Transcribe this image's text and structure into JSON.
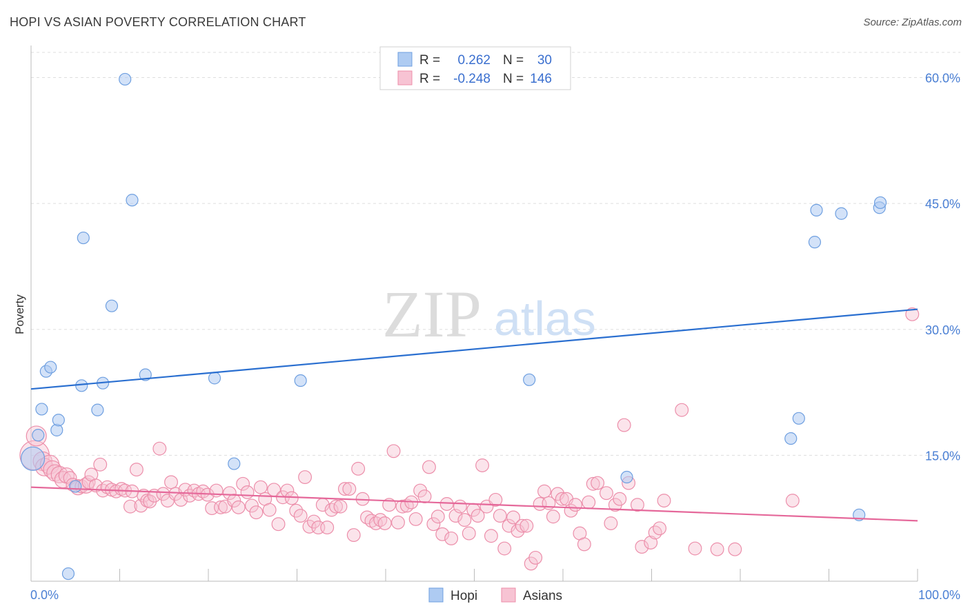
{
  "title": "HOPI VS ASIAN POVERTY CORRELATION CHART",
  "source": "Source: ZipAtlas.com",
  "watermark": {
    "zip": "ZIP",
    "atlas": "atlas"
  },
  "colors": {
    "hopi_fill": "#aecbf2",
    "hopi_stroke": "#6e9fe0",
    "hopi_line": "#2a6fd0",
    "asian_fill": "#f7c3d3",
    "asian_stroke": "#ec8eaa",
    "asian_line": "#e5689a",
    "tick_text": "#4a7fd4",
    "grid": "#dddddd"
  },
  "legend": {
    "rows": [
      {
        "r_label": "R =",
        "r_value": "0.262",
        "n_label": "N =",
        "n_value": "30",
        "series": "hopi"
      },
      {
        "r_label": "R =",
        "r_value": "-0.248",
        "n_label": "N =",
        "n_value": "146",
        "series": "asian"
      }
    ]
  },
  "bottom_legend": [
    {
      "label": "Hopi",
      "series": "hopi"
    },
    {
      "label": "Asians",
      "series": "asian"
    }
  ],
  "chart_data": {
    "type": "scatter",
    "title": "HOPI VS ASIAN POVERTY CORRELATION CHART",
    "xlabel": "",
    "ylabel": "Poverty",
    "xlim": [
      0,
      100
    ],
    "ylim": [
      0,
      63
    ],
    "x_tick_labels": [
      "0.0%",
      "100.0%"
    ],
    "y_ticks": [
      15,
      30,
      45,
      60
    ],
    "y_tick_labels": [
      "15.0%",
      "30.0%",
      "45.0%",
      "60.0%"
    ],
    "grid": true,
    "legend_position": "top-center",
    "series": [
      {
        "name": "Hopi",
        "r": 0.262,
        "n": 30,
        "trend": {
          "x": [
            0,
            100
          ],
          "y": [
            22.9,
            32.4
          ]
        },
        "points": [
          [
            0.2,
            14.6,
            2
          ],
          [
            0.8,
            17.4,
            1
          ],
          [
            1.2,
            20.5,
            1
          ],
          [
            1.7,
            25.0,
            1
          ],
          [
            2.2,
            25.5,
            1
          ],
          [
            2.9,
            18.0,
            1
          ],
          [
            3.1,
            19.2,
            1
          ],
          [
            4.2,
            0.9,
            1
          ],
          [
            5.0,
            11.3,
            1
          ],
          [
            5.7,
            23.3,
            1
          ],
          [
            5.9,
            40.9,
            1
          ],
          [
            7.5,
            20.4,
            1
          ],
          [
            8.1,
            23.6,
            1
          ],
          [
            9.1,
            32.8,
            1
          ],
          [
            10.6,
            59.8,
            1
          ],
          [
            11.4,
            45.4,
            1
          ],
          [
            12.9,
            24.6,
            1
          ],
          [
            20.7,
            24.2,
            1
          ],
          [
            22.9,
            14.0,
            1
          ],
          [
            30.4,
            23.9,
            1
          ],
          [
            56.2,
            24.0,
            1
          ],
          [
            67.2,
            12.4,
            1
          ],
          [
            85.7,
            17.0,
            1
          ],
          [
            86.6,
            19.4,
            1
          ],
          [
            88.4,
            40.4,
            1
          ],
          [
            88.6,
            44.2,
            1
          ],
          [
            91.4,
            43.8,
            1
          ],
          [
            93.4,
            7.9,
            1
          ],
          [
            95.7,
            44.5,
            1
          ],
          [
            95.8,
            45.1,
            1
          ]
        ]
      },
      {
        "name": "Asians",
        "r": -0.248,
        "n": 146,
        "trend": {
          "x": [
            0,
            100
          ],
          "y": [
            11.2,
            7.2
          ]
        },
        "points": [
          [
            0.4,
            15.0,
            2.5
          ],
          [
            0.6,
            17.3,
            1.7
          ],
          [
            1.3,
            14.3,
            1.6
          ],
          [
            1.5,
            13.6,
            1.5
          ],
          [
            2.1,
            13.9,
            1.6
          ],
          [
            2.4,
            13.3,
            1.5
          ],
          [
            2.7,
            12.9,
            1.4
          ],
          [
            3.2,
            12.7,
            1.4
          ],
          [
            3.6,
            12.1,
            1.4
          ],
          [
            4.0,
            12.6,
            1.3
          ],
          [
            4.4,
            12.3,
            1.1
          ],
          [
            4.7,
            11.5,
            1.1
          ],
          [
            5.3,
            11.2,
            1.3
          ],
          [
            5.7,
            11.3,
            1.1
          ],
          [
            6.2,
            11.4,
            1.3
          ],
          [
            6.5,
            11.8,
            1.1
          ],
          [
            6.8,
            12.7,
            1.1
          ],
          [
            7.3,
            11.4,
            1.1
          ],
          [
            7.8,
            13.9,
            1.1
          ],
          [
            8.1,
            10.8,
            1.1
          ],
          [
            8.6,
            11.2,
            1.1
          ],
          [
            9.1,
            10.9,
            1.1
          ],
          [
            9.6,
            10.7,
            1.1
          ],
          [
            10.2,
            11.0,
            1.1
          ],
          [
            10.6,
            10.8,
            1.1
          ],
          [
            11.2,
            8.9,
            1.1
          ],
          [
            11.4,
            10.7,
            1.1
          ],
          [
            11.9,
            13.3,
            1.1
          ],
          [
            12.4,
            9.0,
            1.1
          ],
          [
            12.7,
            10.2,
            1.1
          ],
          [
            13.1,
            9.6,
            1.1
          ],
          [
            13.4,
            9.5,
            1.1
          ],
          [
            13.9,
            10.2,
            1.1
          ],
          [
            14.5,
            15.8,
            1.1
          ],
          [
            14.9,
            10.4,
            1.1
          ],
          [
            15.4,
            9.6,
            1.1
          ],
          [
            15.8,
            11.8,
            1.1
          ],
          [
            16.3,
            10.4,
            1.1
          ],
          [
            16.9,
            9.7,
            1.1
          ],
          [
            17.4,
            10.9,
            1.1
          ],
          [
            17.9,
            10.2,
            1.1
          ],
          [
            18.4,
            10.8,
            1.1
          ],
          [
            18.9,
            10.4,
            1.1
          ],
          [
            19.4,
            10.7,
            1.1
          ],
          [
            19.9,
            10.3,
            1.1
          ],
          [
            20.4,
            8.7,
            1.1
          ],
          [
            20.9,
            10.8,
            1.1
          ],
          [
            21.4,
            8.8,
            1.1
          ],
          [
            21.9,
            8.9,
            1.1
          ],
          [
            22.4,
            10.5,
            1.1
          ],
          [
            22.9,
            9.6,
            1.1
          ],
          [
            23.4,
            8.8,
            1.1
          ],
          [
            23.9,
            11.6,
            1.1
          ],
          [
            24.4,
            10.6,
            1.1
          ],
          [
            24.9,
            9.0,
            1.1
          ],
          [
            25.4,
            8.2,
            1.1
          ],
          [
            25.9,
            11.2,
            1.1
          ],
          [
            26.4,
            9.8,
            1.1
          ],
          [
            26.9,
            8.5,
            1.1
          ],
          [
            27.4,
            10.9,
            1.1
          ],
          [
            27.9,
            6.8,
            1.1
          ],
          [
            28.4,
            10.0,
            1.1
          ],
          [
            28.9,
            10.8,
            1.1
          ],
          [
            29.4,
            9.9,
            1.1
          ],
          [
            29.9,
            8.4,
            1.1
          ],
          [
            30.4,
            7.8,
            1.1
          ],
          [
            30.9,
            12.4,
            1.1
          ],
          [
            31.4,
            6.5,
            1.1
          ],
          [
            31.9,
            7.1,
            1.1
          ],
          [
            32.4,
            6.4,
            1.1
          ],
          [
            32.9,
            9.1,
            1.1
          ],
          [
            33.4,
            6.4,
            1.1
          ],
          [
            33.9,
            8.5,
            1.1
          ],
          [
            34.4,
            8.9,
            1.1
          ],
          [
            34.9,
            8.9,
            1.1
          ],
          [
            35.4,
            11.0,
            1.1
          ],
          [
            35.9,
            11.0,
            1.1
          ],
          [
            36.4,
            5.5,
            1.1
          ],
          [
            36.9,
            13.4,
            1.1
          ],
          [
            37.4,
            9.8,
            1.1
          ],
          [
            37.9,
            7.6,
            1.1
          ],
          [
            38.4,
            7.2,
            1.1
          ],
          [
            38.9,
            6.9,
            1.1
          ],
          [
            39.4,
            7.3,
            1.1
          ],
          [
            39.9,
            6.9,
            1.1
          ],
          [
            40.4,
            9.1,
            1.1
          ],
          [
            40.9,
            15.5,
            1.1
          ],
          [
            41.4,
            7.0,
            1.1
          ],
          [
            41.9,
            8.9,
            1.1
          ],
          [
            42.4,
            9.0,
            1.1
          ],
          [
            42.9,
            9.4,
            1.1
          ],
          [
            43.4,
            7.4,
            1.1
          ],
          [
            43.9,
            10.8,
            1.1
          ],
          [
            44.4,
            10.1,
            1.1
          ],
          [
            44.9,
            13.6,
            1.1
          ],
          [
            45.4,
            6.8,
            1.1
          ],
          [
            45.9,
            7.7,
            1.1
          ],
          [
            46.4,
            5.6,
            1.1
          ],
          [
            46.9,
            9.2,
            1.1
          ],
          [
            47.4,
            5.1,
            1.1
          ],
          [
            47.9,
            7.8,
            1.1
          ],
          [
            48.4,
            8.9,
            1.1
          ],
          [
            48.9,
            7.3,
            1.1
          ],
          [
            49.4,
            5.7,
            1.1
          ],
          [
            49.9,
            8.5,
            1.1
          ],
          [
            50.4,
            7.8,
            1.1
          ],
          [
            50.9,
            13.8,
            1.1
          ],
          [
            51.4,
            8.9,
            1.1
          ],
          [
            51.9,
            5.4,
            1.1
          ],
          [
            52.4,
            9.7,
            1.1
          ],
          [
            52.9,
            7.8,
            1.1
          ],
          [
            53.4,
            3.9,
            1.1
          ],
          [
            53.9,
            6.6,
            1.1
          ],
          [
            54.4,
            7.6,
            1.1
          ],
          [
            54.9,
            6.0,
            1.1
          ],
          [
            55.4,
            6.6,
            1.1
          ],
          [
            55.9,
            6.6,
            1.1
          ],
          [
            56.4,
            2.1,
            1.1
          ],
          [
            56.9,
            2.8,
            1.1
          ],
          [
            57.4,
            9.2,
            1.1
          ],
          [
            57.9,
            10.7,
            1.1
          ],
          [
            58.4,
            9.3,
            1.1
          ],
          [
            58.9,
            7.7,
            1.1
          ],
          [
            59.4,
            10.4,
            1.1
          ],
          [
            59.9,
            9.8,
            1.1
          ],
          [
            60.4,
            9.8,
            1.1
          ],
          [
            60.9,
            8.4,
            1.1
          ],
          [
            61.4,
            9.1,
            1.1
          ],
          [
            61.9,
            5.7,
            1.1
          ],
          [
            62.4,
            4.4,
            1.1
          ],
          [
            62.9,
            9.4,
            1.1
          ],
          [
            63.4,
            11.6,
            1.1
          ],
          [
            63.9,
            11.7,
            1.1
          ],
          [
            64.9,
            10.5,
            1.1
          ],
          [
            65.4,
            6.9,
            1.1
          ],
          [
            65.9,
            9.1,
            1.1
          ],
          [
            66.4,
            9.8,
            1.1
          ],
          [
            66.9,
            18.6,
            1.1
          ],
          [
            67.4,
            11.7,
            1.1
          ],
          [
            68.4,
            9.1,
            1.1
          ],
          [
            68.9,
            4.1,
            1.1
          ],
          [
            69.9,
            4.6,
            1.1
          ],
          [
            70.4,
            5.8,
            1.1
          ],
          [
            70.9,
            6.3,
            1.1
          ],
          [
            71.4,
            9.6,
            1.1
          ],
          [
            73.4,
            20.4,
            1.1
          ],
          [
            74.9,
            3.9,
            1.1
          ],
          [
            77.4,
            3.8,
            1.1
          ],
          [
            79.4,
            3.8,
            1.1
          ],
          [
            85.9,
            9.6,
            1.1
          ],
          [
            99.4,
            31.8,
            1.1
          ]
        ]
      }
    ]
  }
}
